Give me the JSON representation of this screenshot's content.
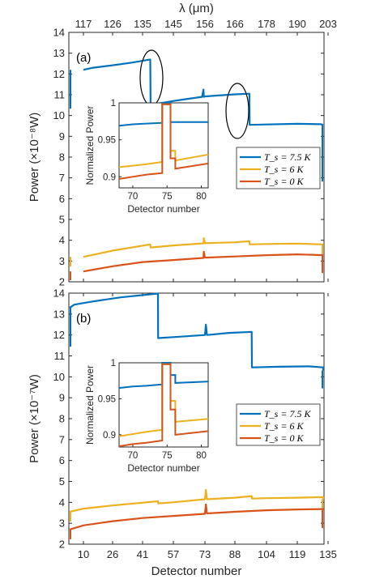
{
  "colors": {
    "series": [
      "#0072BD",
      "#EDB120",
      "#D95319"
    ],
    "axis": "#262626",
    "background": "#ffffff"
  },
  "top_axis": {
    "label": "λ (μm)",
    "ticks": [
      "117",
      "126",
      "135",
      "145",
      "156",
      "166",
      "178",
      "190",
      "203"
    ]
  },
  "bottom_axis": {
    "label": "Detector number",
    "ticks": [
      "10",
      "26",
      "41",
      "57",
      "73",
      "88",
      "104",
      "119",
      "135"
    ]
  },
  "legend": [
    "T_s = 7.5 K",
    "T_s = 6 K",
    "T_s = 0 K"
  ],
  "chart_data": [
    {
      "type": "line",
      "panel": "(a)",
      "ylabel": "Power (×10⁻⁸W)",
      "xlabel": "",
      "ylim": [
        2,
        14
      ],
      "yticks": [
        2,
        3,
        4,
        5,
        6,
        7,
        8,
        9,
        10,
        11,
        12,
        13,
        14
      ],
      "annotations": [
        "ellipse around discontinuity near λ ≈ 138 μm",
        "ellipse around discontinuity near λ ≈ 172 μm"
      ],
      "series": [
        {
          "name": "T_s = 7.5 K",
          "color": "#0072BD",
          "x": [
            117,
            120,
            126,
            132,
            137.5,
            137.6,
            141,
            145,
            150,
            155,
            155.5,
            155.6,
            156,
            160,
            166,
            171.5,
            171.6,
            178,
            190,
            200,
            203
          ],
          "y": [
            12.2,
            12.3,
            12.42,
            12.55,
            12.7,
            10.5,
            10.6,
            10.7,
            10.8,
            10.9,
            11.25,
            10.9,
            10.92,
            10.96,
            11.02,
            11.05,
            9.55,
            9.57,
            9.6,
            9.58,
            9.55
          ]
        },
        {
          "name": "T_s = 6 K",
          "color": "#EDB120",
          "x": [
            117,
            126,
            137.5,
            137.6,
            145,
            155.5,
            155.6,
            156,
            166,
            171.5,
            171.6,
            178,
            190,
            203
          ],
          "y": [
            3.2,
            3.5,
            3.8,
            3.65,
            3.75,
            3.85,
            4.1,
            3.86,
            3.9,
            3.95,
            3.8,
            3.82,
            3.84,
            3.8
          ]
        },
        {
          "name": "T_s = 0 K",
          "color": "#D95319",
          "x": [
            117,
            126,
            135,
            145,
            155.5,
            155.6,
            156,
            166,
            178,
            190,
            203
          ],
          "y": [
            2.5,
            2.75,
            2.95,
            3.05,
            3.15,
            3.45,
            3.16,
            3.22,
            3.28,
            3.32,
            3.28
          ]
        }
      ],
      "inset": {
        "xlabel": "Detector number",
        "ylabel": "Normalized Power",
        "xlim": [
          68,
          81
        ],
        "ylim": [
          0.885,
          1.0
        ],
        "xticks": [
          70,
          75,
          80
        ],
        "yticks": [
          0.9,
          0.95,
          1
        ],
        "series": [
          {
            "name": "T_s = 7.5 K",
            "x": [
              68,
              70,
              72,
              74.3,
              74.3,
              75.5,
              75.5,
              81
            ],
            "y": [
              0.969,
              0.971,
              0.972,
              0.973,
              1.0,
              1.0,
              0.974,
              0.974
            ]
          },
          {
            "name": "T_s = 6 K",
            "x": [
              68,
              70,
              72,
              74.3,
              74.3,
              75.5,
              75.5,
              76.2,
              76.2,
              81
            ],
            "y": [
              0.913,
              0.915,
              0.917,
              0.92,
              0.998,
              0.998,
              0.935,
              0.935,
              0.922,
              0.93
            ]
          },
          {
            "name": "T_s = 0 K",
            "x": [
              68,
              70,
              72,
              74.3,
              74.3,
              75.5,
              75.5,
              76.2,
              76.2,
              81
            ],
            "y": [
              0.897,
              0.9,
              0.903,
              0.905,
              0.998,
              0.998,
              0.925,
              0.925,
              0.911,
              0.918
            ]
          }
        ]
      }
    },
    {
      "type": "line",
      "panel": "(b)",
      "ylabel": "Power (×10⁻⁷W)",
      "xlabel": "Detector number",
      "ylim": [
        2,
        14
      ],
      "yticks": [
        2,
        3,
        4,
        5,
        6,
        7,
        8,
        9,
        10,
        11,
        12,
        13,
        14
      ],
      "series": [
        {
          "name": "T_s = 7.5 K",
          "color": "#0072BD",
          "x": [
            2,
            5,
            15,
            30,
            49,
            49.1,
            57,
            73,
            73.5,
            74,
            85,
            96.5,
            96.6,
            110,
            125,
            138,
            141
          ],
          "y": [
            13.3,
            13.45,
            13.6,
            13.8,
            13.98,
            11.85,
            11.9,
            12.0,
            12.5,
            12.0,
            12.1,
            12.15,
            10.45,
            10.48,
            10.5,
            10.45,
            10.3
          ]
        },
        {
          "name": "T_s = 6 K",
          "color": "#EDB120",
          "x": [
            2,
            10,
            26,
            49,
            49.1,
            57,
            73,
            73.5,
            74,
            88,
            96.5,
            96.6,
            104,
            119,
            135,
            141
          ],
          "y": [
            3.55,
            3.7,
            3.85,
            4.05,
            3.95,
            4.0,
            4.15,
            4.6,
            4.15,
            4.22,
            4.3,
            4.18,
            4.2,
            4.22,
            4.25,
            4.15
          ]
        },
        {
          "name": "T_s = 0 K",
          "color": "#D95319",
          "x": [
            2,
            10,
            26,
            41,
            57,
            73,
            73.5,
            74,
            88,
            104,
            119,
            135,
            141
          ],
          "y": [
            2.7,
            2.9,
            3.1,
            3.25,
            3.35,
            3.45,
            3.9,
            3.47,
            3.55,
            3.62,
            3.66,
            3.68,
            3.62
          ]
        }
      ],
      "inset": {
        "xlabel": "Detector number",
        "ylabel": "Normalized Power",
        "xlim": [
          68,
          81
        ],
        "ylim": [
          0.883,
          1.0
        ],
        "xticks": [
          70,
          75,
          80
        ],
        "yticks": [
          0.9,
          0.95,
          1
        ],
        "series": [
          {
            "name": "T_s = 7.5 K",
            "x": [
              68,
              70,
              72,
              74.3,
              74.3,
              75.5,
              75.5,
              76.2,
              76.2,
              81
            ],
            "y": [
              0.965,
              0.967,
              0.968,
              0.97,
              1.0,
              1.0,
              0.983,
              0.983,
              0.972,
              0.974
            ]
          },
          {
            "name": "T_s = 6 K",
            "x": [
              68,
              70,
              72,
              74.3,
              74.3,
              75.5,
              75.5,
              76.2,
              76.2,
              81
            ],
            "y": [
              0.898,
              0.901,
              0.904,
              0.907,
              0.998,
              0.998,
              0.947,
              0.947,
              0.918,
              0.922
            ]
          },
          {
            "name": "T_s = 0 K",
            "x": [
              68,
              70,
              72,
              74.3,
              74.3,
              75.5,
              75.5,
              76.2,
              76.2,
              81
            ],
            "y": [
              0.884,
              0.887,
              0.889,
              0.892,
              0.998,
              0.998,
              0.935,
              0.935,
              0.9,
              0.905
            ]
          }
        ]
      }
    }
  ]
}
